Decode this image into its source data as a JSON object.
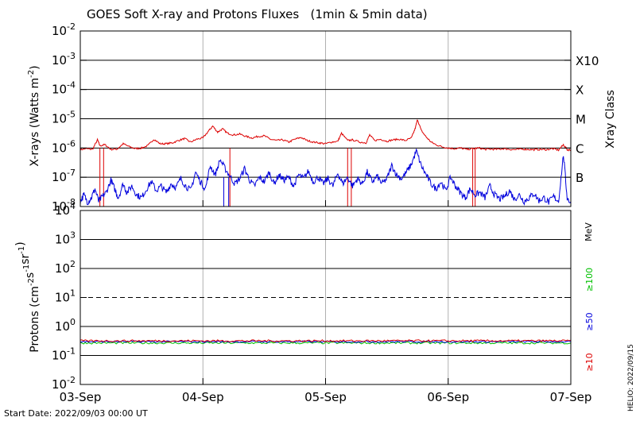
{
  "chart_data": [
    {
      "type": "line",
      "title": "GOES Soft X-ray and Protons Fluxes   (1min & 5min data)",
      "ylabel": "X-rays (Watts m",
      "ylabel_sup": "-2",
      "ylabel_close": ")",
      "y2label": "Xray Class",
      "yscale": "log",
      "ylim": [
        1e-08,
        0.01
      ],
      "ytick_labels": [
        {
          "value": 0.01,
          "base": "10",
          "exp": "-2"
        },
        {
          "value": 0.001,
          "base": "10",
          "exp": "-3"
        },
        {
          "value": 0.0001,
          "base": "10",
          "exp": "-4"
        },
        {
          "value": 1e-05,
          "base": "10",
          "exp": "-5"
        },
        {
          "value": 1e-06,
          "base": "10",
          "exp": "-6"
        },
        {
          "value": 1e-07,
          "base": "10",
          "exp": "-7"
        },
        {
          "value": 1e-08,
          "base": "10",
          "exp": "-8"
        }
      ],
      "class_labels": [
        {
          "value": 0.001,
          "label": "X10"
        },
        {
          "value": 0.0001,
          "label": "X"
        },
        {
          "value": 1e-05,
          "label": "M"
        },
        {
          "value": 1e-06,
          "label": "C"
        },
        {
          "value": 1e-07,
          "label": "B"
        }
      ],
      "grid_values": [
        0.001,
        0.0001,
        1e-05,
        1e-06,
        1e-07
      ],
      "series": [
        {
          "color": "#dd0000",
          "points": [
            [
              0.0,
              8.8e-07
            ],
            [
              0.05,
              9.5e-07
            ],
            [
              0.1,
              9e-07
            ],
            [
              0.14,
              1.9e-06
            ],
            [
              0.16,
              1.2e-06
            ],
            [
              0.2,
              1.3e-06
            ],
            [
              0.25,
              9e-07
            ],
            [
              0.3,
              9.2e-07
            ],
            [
              0.35,
              1.4e-06
            ],
            [
              0.4,
              1.1e-06
            ],
            [
              0.45,
              9.5e-07
            ],
            [
              0.5,
              1e-06
            ],
            [
              0.55,
              1.2e-06
            ],
            [
              0.6,
              2e-06
            ],
            [
              0.65,
              1.4e-06
            ],
            [
              0.7,
              1.4e-06
            ],
            [
              0.75,
              1.5e-06
            ],
            [
              0.8,
              1.8e-06
            ],
            [
              0.85,
              2.1e-06
            ],
            [
              0.9,
              1.6e-06
            ],
            [
              0.95,
              2e-06
            ],
            [
              1.0,
              2.2e-06
            ],
            [
              1.05,
              4e-06
            ],
            [
              1.08,
              5.6e-06
            ],
            [
              1.12,
              3.5e-06
            ],
            [
              1.16,
              4.5e-06
            ],
            [
              1.2,
              3.2e-06
            ],
            [
              1.25,
              2.8e-06
            ],
            [
              1.3,
              3e-06
            ],
            [
              1.35,
              2.5e-06
            ],
            [
              1.4,
              2.2e-06
            ],
            [
              1.45,
              2.5e-06
            ],
            [
              1.5,
              2.6e-06
            ],
            [
              1.55,
              2e-06
            ],
            [
              1.6,
              1.8e-06
            ],
            [
              1.65,
              1.9e-06
            ],
            [
              1.7,
              1.6e-06
            ],
            [
              1.75,
              2e-06
            ],
            [
              1.8,
              2.3e-06
            ],
            [
              1.85,
              1.8e-06
            ],
            [
              1.9,
              1.6e-06
            ],
            [
              1.95,
              1.5e-06
            ],
            [
              2.0,
              1.4e-06
            ],
            [
              2.05,
              1.6e-06
            ],
            [
              2.1,
              1.7e-06
            ],
            [
              2.13,
              3.2e-06
            ],
            [
              2.18,
              1.8e-06
            ],
            [
              2.22,
              1.9e-06
            ],
            [
              2.28,
              1.6e-06
            ],
            [
              2.33,
              1.5e-06
            ],
            [
              2.36,
              2.8e-06
            ],
            [
              2.4,
              1.8e-06
            ],
            [
              2.45,
              2e-06
            ],
            [
              2.5,
              1.7e-06
            ],
            [
              2.55,
              1.9e-06
            ],
            [
              2.6,
              2e-06
            ],
            [
              2.65,
              1.8e-06
            ],
            [
              2.7,
              2.2e-06
            ],
            [
              2.73,
              4.5e-06
            ],
            [
              2.75,
              9.5e-06
            ],
            [
              2.78,
              4e-06
            ],
            [
              2.82,
              2.4e-06
            ],
            [
              2.86,
              1.6e-06
            ],
            [
              2.9,
              1.3e-06
            ],
            [
              2.95,
              1.1e-06
            ],
            [
              3.0,
              1e-06
            ],
            [
              3.05,
              9.5e-07
            ],
            [
              3.1,
              1e-06
            ],
            [
              3.15,
              9e-07
            ],
            [
              3.2,
              9.5e-07
            ],
            [
              3.25,
              1e-06
            ],
            [
              3.3,
              9e-07
            ],
            [
              3.35,
              9.2e-07
            ],
            [
              3.4,
              9e-07
            ],
            [
              3.45,
              9.5e-07
            ],
            [
              3.5,
              9e-07
            ],
            [
              3.55,
              8.8e-07
            ],
            [
              3.6,
              9.2e-07
            ],
            [
              3.65,
              9e-07
            ],
            [
              3.7,
              8.8e-07
            ],
            [
              3.75,
              9e-07
            ],
            [
              3.8,
              8.8e-07
            ],
            [
              3.85,
              9.5e-07
            ],
            [
              3.9,
              8.5e-07
            ],
            [
              3.94,
              1.3e-06
            ],
            [
              3.97,
              8.8e-07
            ],
            [
              4.0,
              8.5e-07
            ]
          ]
        },
        {
          "color": "#0000dd",
          "points": [
            [
              0.0,
              1.5e-08
            ],
            [
              0.03,
              2.5e-08
            ],
            [
              0.06,
              1.4e-08
            ],
            [
              0.09,
              2e-08
            ],
            [
              0.12,
              4e-08
            ],
            [
              0.15,
              1.5e-08
            ],
            [
              0.18,
              2.2e-08
            ],
            [
              0.21,
              3e-08
            ],
            [
              0.25,
              8e-08
            ],
            [
              0.28,
              4e-08
            ],
            [
              0.31,
              2e-08
            ],
            [
              0.35,
              6e-08
            ],
            [
              0.38,
              3e-08
            ],
            [
              0.42,
              5e-08
            ],
            [
              0.46,
              2.5e-08
            ],
            [
              0.5,
              2e-08
            ],
            [
              0.54,
              4e-08
            ],
            [
              0.58,
              7e-08
            ],
            [
              0.62,
              3.5e-08
            ],
            [
              0.66,
              5e-08
            ],
            [
              0.7,
              3e-08
            ],
            [
              0.74,
              6e-08
            ],
            [
              0.78,
              4.5e-08
            ],
            [
              0.82,
              9e-08
            ],
            [
              0.86,
              5e-08
            ],
            [
              0.9,
              3.5e-08
            ],
            [
              0.94,
              1.5e-07
            ],
            [
              0.98,
              7e-08
            ],
            [
              1.02,
              4e-08
            ],
            [
              1.06,
              2.5e-07
            ],
            [
              1.1,
              1.2e-07
            ],
            [
              1.14,
              4e-07
            ],
            [
              1.18,
              2e-07
            ],
            [
              1.22,
              1.1e-07
            ],
            [
              1.26,
              6e-08
            ],
            [
              1.3,
              9e-08
            ],
            [
              1.34,
              2e-07
            ],
            [
              1.38,
              8e-08
            ],
            [
              1.42,
              5e-08
            ],
            [
              1.46,
              1e-07
            ],
            [
              1.5,
              7e-08
            ],
            [
              1.54,
              1.5e-07
            ],
            [
              1.58,
              6e-08
            ],
            [
              1.62,
              1.2e-07
            ],
            [
              1.66,
              8e-08
            ],
            [
              1.7,
              1e-07
            ],
            [
              1.74,
              5e-08
            ],
            [
              1.78,
              1.2e-07
            ],
            [
              1.82,
              9e-08
            ],
            [
              1.86,
              1.6e-07
            ],
            [
              1.9,
              7e-08
            ],
            [
              1.94,
              1e-07
            ],
            [
              1.98,
              6e-08
            ],
            [
              2.02,
              9e-08
            ],
            [
              2.06,
              5e-08
            ],
            [
              2.1,
              1.4e-07
            ],
            [
              2.14,
              6e-08
            ],
            [
              2.18,
              1e-07
            ],
            [
              2.22,
              5e-08
            ],
            [
              2.26,
              9e-08
            ],
            [
              2.3,
              6e-08
            ],
            [
              2.34,
              1.5e-07
            ],
            [
              2.38,
              7e-08
            ],
            [
              2.42,
              1.1e-07
            ],
            [
              2.46,
              6e-08
            ],
            [
              2.5,
              9e-08
            ],
            [
              2.54,
              2.5e-07
            ],
            [
              2.58,
              1.2e-07
            ],
            [
              2.62,
              9e-08
            ],
            [
              2.66,
              1.5e-07
            ],
            [
              2.7,
              2.8e-07
            ],
            [
              2.74,
              8e-07
            ],
            [
              2.78,
              2.5e-07
            ],
            [
              2.82,
              1.2e-07
            ],
            [
              2.86,
              6e-08
            ],
            [
              2.9,
              4e-08
            ],
            [
              2.94,
              7e-08
            ],
            [
              2.98,
              3.5e-08
            ],
            [
              3.02,
              1e-07
            ],
            [
              3.06,
              5e-08
            ],
            [
              3.1,
              3e-08
            ],
            [
              3.14,
              2e-08
            ],
            [
              3.18,
              4e-08
            ],
            [
              3.22,
              2.5e-08
            ],
            [
              3.26,
              3e-08
            ],
            [
              3.3,
              2e-08
            ],
            [
              3.34,
              5e-08
            ],
            [
              3.38,
              2.5e-08
            ],
            [
              3.42,
              1.8e-08
            ],
            [
              3.46,
              2.2e-08
            ],
            [
              3.5,
              3.5e-08
            ],
            [
              3.54,
              1.8e-08
            ],
            [
              3.58,
              2.5e-08
            ],
            [
              3.62,
              1.5e-08
            ],
            [
              3.66,
              2e-08
            ],
            [
              3.7,
              2.8e-08
            ],
            [
              3.74,
              1.6e-08
            ],
            [
              3.78,
              2e-08
            ],
            [
              3.82,
              1.4e-08
            ],
            [
              3.86,
              2.2e-08
            ],
            [
              3.9,
              1.5e-08
            ],
            [
              3.94,
              6e-07
            ],
            [
              3.97,
              2e-08
            ],
            [
              4.0,
              1.3e-08
            ]
          ]
        }
      ],
      "dropouts": [
        {
          "x": 0.16,
          "color": "#dd0000"
        },
        {
          "x": 0.19,
          "color": "#dd0000"
        },
        {
          "x": 1.17,
          "color": "#0000dd"
        },
        {
          "x": 1.21,
          "color": "#0000dd"
        },
        {
          "x": 1.22,
          "color": "#dd0000"
        },
        {
          "x": 2.18,
          "color": "#dd0000"
        },
        {
          "x": 2.21,
          "color": "#dd0000"
        },
        {
          "x": 3.2,
          "color": "#dd0000"
        },
        {
          "x": 3.22,
          "color": "#dd0000"
        }
      ]
    },
    {
      "type": "line",
      "ylabel": "Protons (cm",
      "ylabel_parts": [
        {
          "t": "Protons (cm",
          "sup": false
        },
        {
          "t": "-2",
          "sup": true
        },
        {
          "t": "s",
          "sup": false
        },
        {
          "t": "-1",
          "sup": true
        },
        {
          "t": "sr",
          "sup": false
        },
        {
          "t": "-1",
          "sup": true
        },
        {
          "t": ")",
          "sup": false
        }
      ],
      "yscale": "log",
      "ylim": [
        0.01,
        10000
      ],
      "ytick_labels": [
        {
          "value": 10000,
          "base": "10",
          "exp": "4"
        },
        {
          "value": 1000,
          "base": "10",
          "exp": "3"
        },
        {
          "value": 100,
          "base": "10",
          "exp": "2"
        },
        {
          "value": 10,
          "base": "10",
          "exp": "1"
        },
        {
          "value": 1,
          "base": "10",
          "exp": "0"
        },
        {
          "value": 0.1,
          "base": "10",
          "exp": "-1"
        },
        {
          "value": 0.01,
          "base": "10",
          "exp": "-2"
        }
      ],
      "grid_values": [
        1000,
        100,
        1,
        0.1
      ],
      "threshold": 10,
      "units_label": "MeV",
      "series": [
        {
          "name": "≥100",
          "color": "#00c000",
          "level": 0.27,
          "jitter": 0.035
        },
        {
          "name": "≥50",
          "color": "#0000dd",
          "level": 0.3,
          "jitter": 0.03
        },
        {
          "name": "≥10",
          "color": "#dd0000",
          "level": 0.32,
          "jitter": 0.035
        }
      ],
      "xtick_labels": [
        "03-Sep",
        "04-Sep",
        "05-Sep",
        "06-Sep",
        "07-Sep"
      ],
      "xlim": [
        0,
        4
      ]
    }
  ],
  "footer": {
    "start_date": "Start Date: 2022/09/03 00:00 UT",
    "credit": "HELIO: 2022/09/15"
  }
}
